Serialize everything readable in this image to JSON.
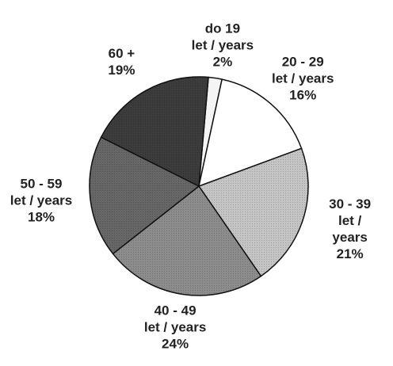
{
  "chart_data": {
    "type": "pie",
    "categories": [
      "do 19\nlet / years",
      "20 - 29\nlet / years",
      "30 - 39\nlet / years",
      "40 - 49\nlet / years",
      "50 - 59\nlet / years",
      "60 +"
    ],
    "values": [
      2,
      16,
      21,
      24,
      18,
      19
    ],
    "value_labels": [
      "2%",
      "16%",
      "21%",
      "24%",
      "18%",
      "19%"
    ],
    "colors": [
      "#f4f4f4",
      "#ffffff",
      "#c4c4c4",
      "#8c8c8c",
      "#666666",
      "#3c3c3c"
    ]
  }
}
